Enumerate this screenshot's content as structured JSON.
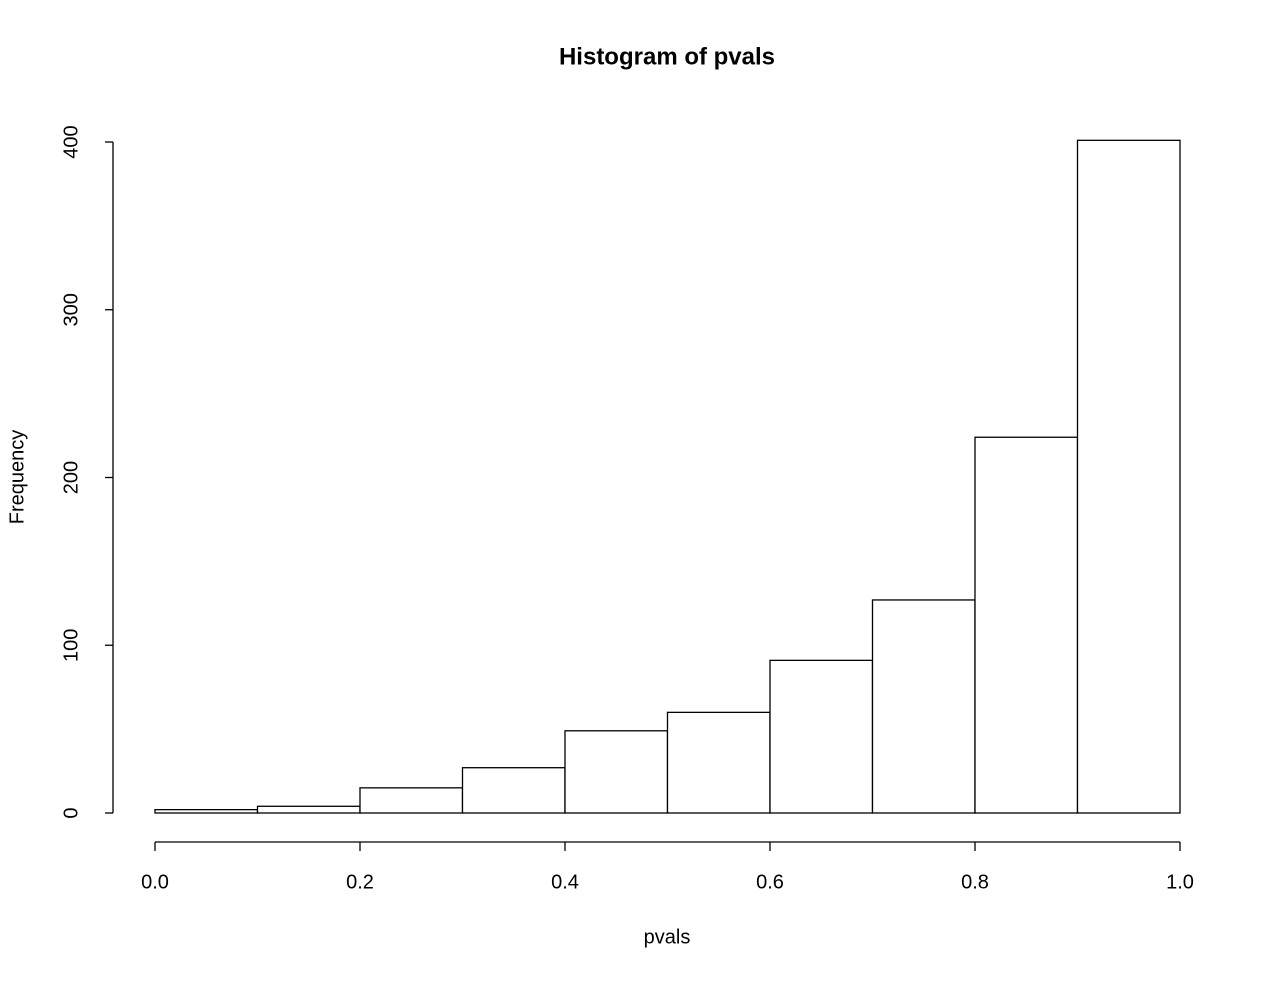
{
  "chart_data": {
    "type": "histogram",
    "title": "Histogram of pvals",
    "x_label": "pvals",
    "y_label": "Frequency",
    "bins": [
      0,
      0.1,
      0.2,
      0.3,
      0.4,
      0.5,
      0.6,
      0.7,
      0.8,
      0.9,
      1
    ],
    "values": [
      2,
      4,
      15,
      27,
      49,
      60,
      91,
      127,
      224,
      401
    ],
    "color": "#ffffff",
    "xlim": [
      0,
      1
    ],
    "xticks": [
      {
        "value": 0,
        "label": "0.0"
      },
      0.2,
      0.4,
      0.6,
      0.8,
      {
        "value": 1,
        "label": "1.0"
      }
    ],
    "ylim": [
      0,
      400
    ],
    "yticks": [
      0,
      100,
      200,
      300,
      400
    ],
    "grid": false
  }
}
